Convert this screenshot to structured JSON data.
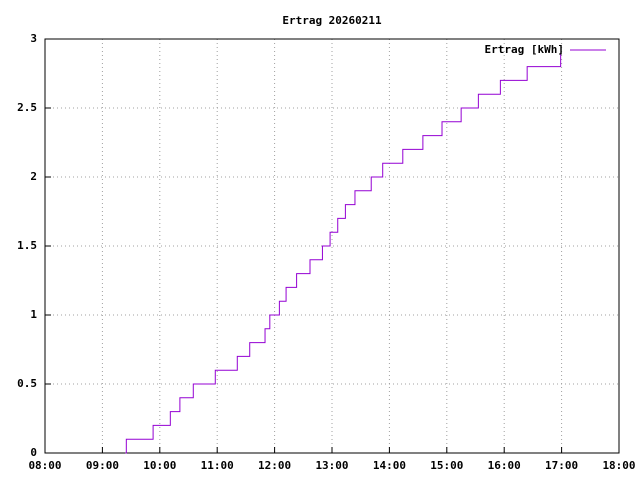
{
  "chart_data": {
    "type": "line",
    "title": "Ertrag 20260211",
    "step": true,
    "grid": true,
    "legend": "top-right",
    "xlim": [
      "08:00",
      "18:00"
    ],
    "xticks": [
      "08:00",
      "09:00",
      "10:00",
      "11:00",
      "12:00",
      "13:00",
      "14:00",
      "15:00",
      "16:00",
      "17:00",
      "18:00"
    ],
    "ylim": [
      0,
      3
    ],
    "yticks": [
      0,
      0.5,
      1,
      1.5,
      2,
      2.5,
      3
    ],
    "x": [
      "09:24",
      "09:25",
      "09:53",
      "10:11",
      "10:21",
      "10:35",
      "10:58",
      "11:21",
      "11:34",
      "11:50",
      "11:55",
      "12:05",
      "12:12",
      "12:23",
      "12:37",
      "12:50",
      "12:58",
      "13:06",
      "13:14",
      "13:24",
      "13:41",
      "13:53",
      "14:14",
      "14:35",
      "14:55",
      "15:15",
      "15:33",
      "15:56",
      "16:24",
      "16:59"
    ],
    "series": [
      {
        "name": "Ertrag [kWh]",
        "color": "#9400d3",
        "values": [
          0,
          0.1,
          0.2,
          0.3,
          0.4,
          0.5,
          0.6,
          0.7,
          0.8,
          0.9,
          1.0,
          1.1,
          1.2,
          1.3,
          1.4,
          1.5,
          1.6,
          1.7,
          1.8,
          1.9,
          2.0,
          2.1,
          2.2,
          2.3,
          2.4,
          2.5,
          2.6,
          2.7,
          2.8,
          2.9
        ]
      }
    ]
  }
}
